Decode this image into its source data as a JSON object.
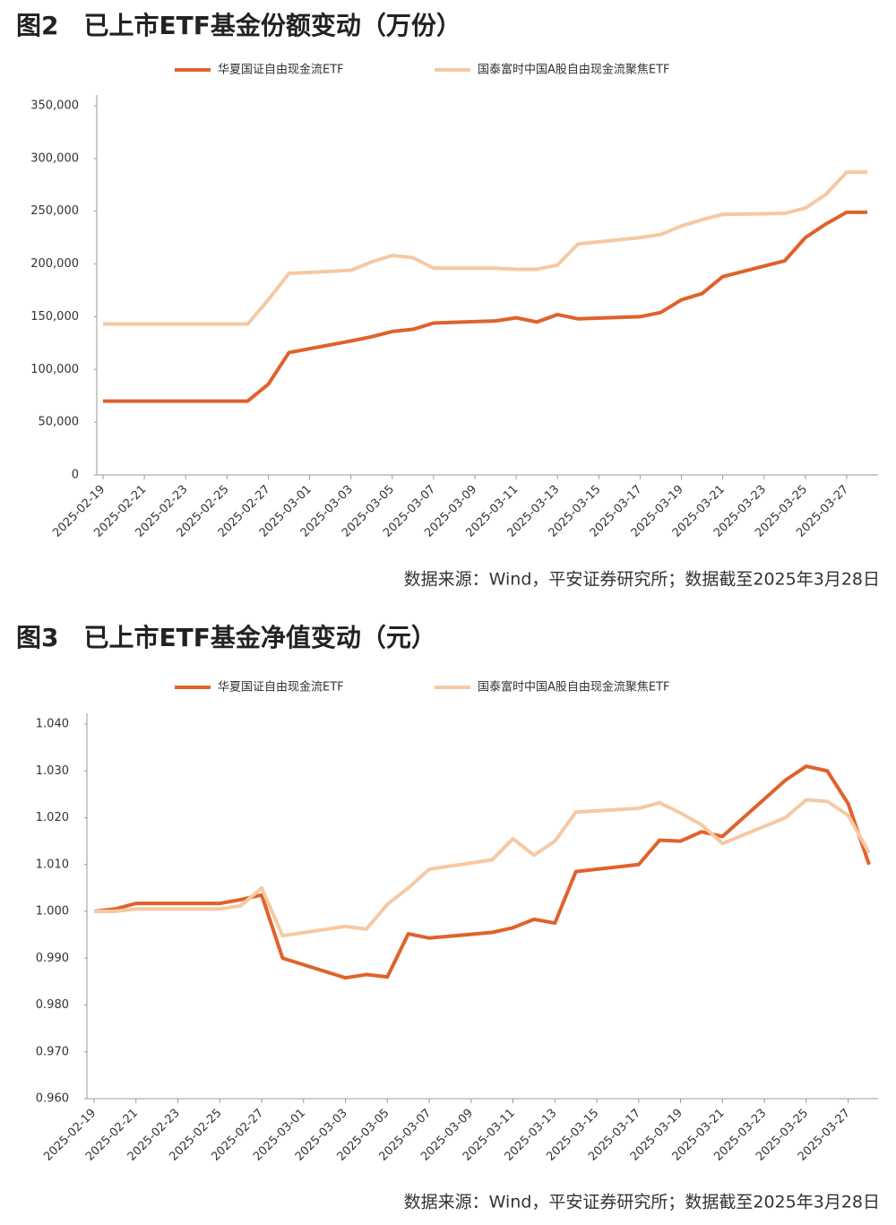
{
  "chart_data": [
    {
      "type": "line",
      "title": "图2　已上市ETF基金份额变动（万份）",
      "source": "数据来源：Wind，平安证券研究所；数据截至2025年3月28日",
      "x": [
        "2025-02-19",
        "2025-02-20",
        "2025-02-21",
        "2025-02-24",
        "2025-02-25",
        "2025-02-26",
        "2025-02-27",
        "2025-02-28",
        "2025-03-03",
        "2025-03-04",
        "2025-03-05",
        "2025-03-06",
        "2025-03-07",
        "2025-03-10",
        "2025-03-11",
        "2025-03-12",
        "2025-03-13",
        "2025-03-14",
        "2025-03-17",
        "2025-03-18",
        "2025-03-19",
        "2025-03-20",
        "2025-03-21",
        "2025-03-24",
        "2025-03-25",
        "2025-03-26",
        "2025-03-27",
        "2025-03-28"
      ],
      "series": [
        {
          "name": "华夏国证自由现金流ETF",
          "color": "#e0622a",
          "values": [
            70000,
            70000,
            70000,
            70000,
            70000,
            70000,
            86000,
            116000,
            127000,
            131000,
            136000,
            138000,
            144000,
            146000,
            149000,
            145000,
            152000,
            148000,
            150000,
            154000,
            166000,
            172000,
            188000,
            203000,
            225000,
            238000,
            249000,
            249000
          ]
        },
        {
          "name": "国泰富时中国A股自由现金流聚焦ETF",
          "color": "#f5c9a4",
          "values": [
            143000,
            143000,
            143000,
            143000,
            143000,
            143000,
            166000,
            191000,
            194000,
            202000,
            208000,
            206000,
            196000,
            196000,
            195000,
            195000,
            199000,
            219000,
            225000,
            228000,
            236000,
            242000,
            247000,
            248000,
            253000,
            266000,
            287000,
            287000
          ]
        }
      ],
      "xlim": [
        "2025-02-19",
        "2025-03-28"
      ],
      "xticks": [
        "2025-02-19",
        "2025-02-21",
        "2025-02-23",
        "2025-02-25",
        "2025-02-27",
        "2025-03-01",
        "2025-03-03",
        "2025-03-05",
        "2025-03-07",
        "2025-03-09",
        "2025-03-11",
        "2025-03-13",
        "2025-03-15",
        "2025-03-17",
        "2025-03-19",
        "2025-03-21",
        "2025-03-23",
        "2025-03-25",
        "2025-03-27"
      ],
      "ylim": [
        0,
        350000
      ],
      "yticks": [
        0,
        {
          "value": 50000,
          "label": "50,000"
        },
        {
          "value": 100000,
          "label": "100,000"
        },
        {
          "value": 150000,
          "label": "150,000"
        },
        {
          "value": 200000,
          "label": "200,000"
        },
        {
          "value": 250000,
          "label": "250,000"
        },
        {
          "value": 300000,
          "label": "300,000"
        },
        {
          "value": 350000,
          "label": "350,000"
        }
      ],
      "legend": "top",
      "grid": false
    },
    {
      "type": "line",
      "title": "图3　已上市ETF基金净值变动（元）",
      "source": "数据来源：Wind，平安证券研究所；数据截至2025年3月28日",
      "x": [
        "2025-02-19",
        "2025-02-20",
        "2025-02-21",
        "2025-02-24",
        "2025-02-25",
        "2025-02-26",
        "2025-02-27",
        "2025-02-28",
        "2025-03-03",
        "2025-03-04",
        "2025-03-05",
        "2025-03-06",
        "2025-03-07",
        "2025-03-10",
        "2025-03-11",
        "2025-03-12",
        "2025-03-13",
        "2025-03-14",
        "2025-03-17",
        "2025-03-18",
        "2025-03-19",
        "2025-03-20",
        "2025-03-21",
        "2025-03-24",
        "2025-03-25",
        "2025-03-26",
        "2025-03-27",
        "2025-03-28"
      ],
      "series": [
        {
          "name": "华夏国证自由现金流ETF",
          "color": "#e0622a",
          "values": [
            1.0,
            1.0005,
            1.0017,
            1.0017,
            1.0017,
            1.0025,
            1.0035,
            0.99,
            0.9858,
            0.9865,
            0.986,
            0.9952,
            0.9943,
            0.9955,
            0.9965,
            0.9983,
            0.9975,
            1.0085,
            1.01,
            1.0152,
            1.015,
            1.017,
            1.016,
            1.028,
            1.031,
            1.03,
            1.023,
            1.01
          ]
        },
        {
          "name": "国泰富时中国A股自由现金流聚焦ETF",
          "color": "#f5c9a4",
          "values": [
            1.0,
            1.0,
            1.0005,
            1.0005,
            1.0005,
            1.0012,
            1.005,
            0.9948,
            0.9968,
            0.9962,
            1.0015,
            1.005,
            1.009,
            1.011,
            1.0155,
            1.012,
            1.015,
            1.0212,
            1.022,
            1.0232,
            1.021,
            1.0185,
            1.0145,
            1.02,
            1.0238,
            1.0235,
            1.0205,
            1.0125
          ]
        }
      ],
      "xlim": [
        "2025-02-19",
        "2025-03-28"
      ],
      "xticks": [
        "2025-02-19",
        "2025-02-21",
        "2025-02-23",
        "2025-02-25",
        "2025-02-27",
        "2025-03-01",
        "2025-03-03",
        "2025-03-05",
        "2025-03-07",
        "2025-03-09",
        "2025-03-11",
        "2025-03-13",
        "2025-03-15",
        "2025-03-17",
        "2025-03-19",
        "2025-03-21",
        "2025-03-23",
        "2025-03-25",
        "2025-03-27"
      ],
      "ylim": [
        0.96,
        1.04
      ],
      "yticks": [
        {
          "value": 0.96,
          "label": "0.960"
        },
        {
          "value": 0.97,
          "label": "0.970"
        },
        {
          "value": 0.98,
          "label": "0.980"
        },
        {
          "value": 0.99,
          "label": "0.990"
        },
        {
          "value": 1.0,
          "label": "1.000"
        },
        {
          "value": 1.01,
          "label": "1.010"
        },
        {
          "value": 1.02,
          "label": "1.020"
        },
        {
          "value": 1.03,
          "label": "1.030"
        },
        {
          "value": 1.04,
          "label": "1.040"
        }
      ],
      "legend": "top",
      "grid": false
    }
  ]
}
